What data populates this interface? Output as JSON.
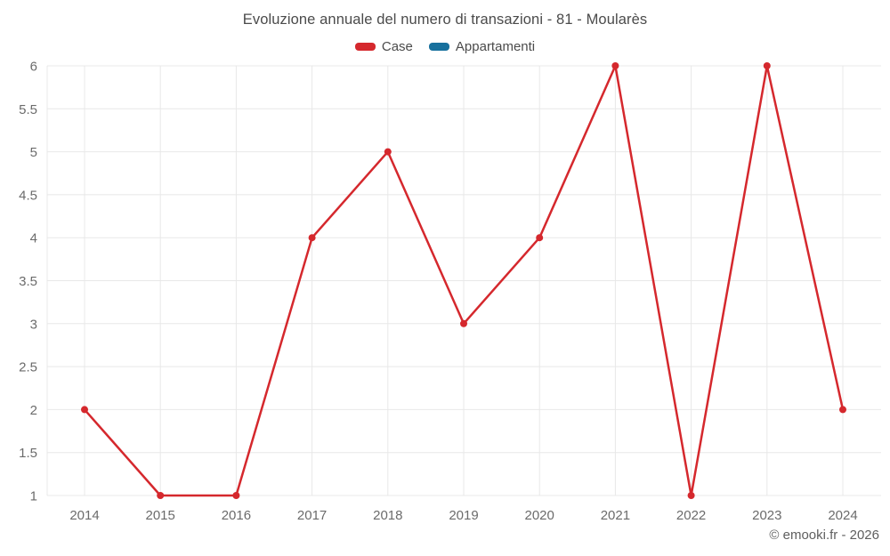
{
  "title": "Evoluzione annuale del numero di transazioni - 81 - Moularès",
  "footer_credit": "© emooki.fr - 2026",
  "colors": {
    "case_series": "#d5282d",
    "appartamenti_series": "#17709d",
    "grid": "#e8e8e8",
    "axis_label": "#6b6b6b",
    "title_text": "#4b4b4b",
    "footer_text": "#5f5f5f"
  },
  "chart_data": {
    "type": "line",
    "title": "Evoluzione annuale del numero di transazioni - 81 - Moularès",
    "x": [
      2014,
      2015,
      2016,
      2017,
      2018,
      2019,
      2020,
      2021,
      2022,
      2023,
      2024
    ],
    "series": [
      {
        "name": "Case",
        "color": "#d5282d",
        "values": [
          2,
          1,
          1,
          4,
          5,
          3,
          4,
          6,
          1,
          6,
          2
        ]
      },
      {
        "name": "Appartamenti",
        "color": "#17709d",
        "values": []
      }
    ],
    "xlabel": "",
    "ylabel": "",
    "ylim": [
      1,
      6
    ],
    "ytick_step": 0.5,
    "yticks": [
      1,
      1.5,
      2,
      2.5,
      3,
      3.5,
      4,
      4.5,
      5,
      5.5,
      6
    ],
    "grid": true,
    "legend_position": "top",
    "marker": "circle"
  }
}
